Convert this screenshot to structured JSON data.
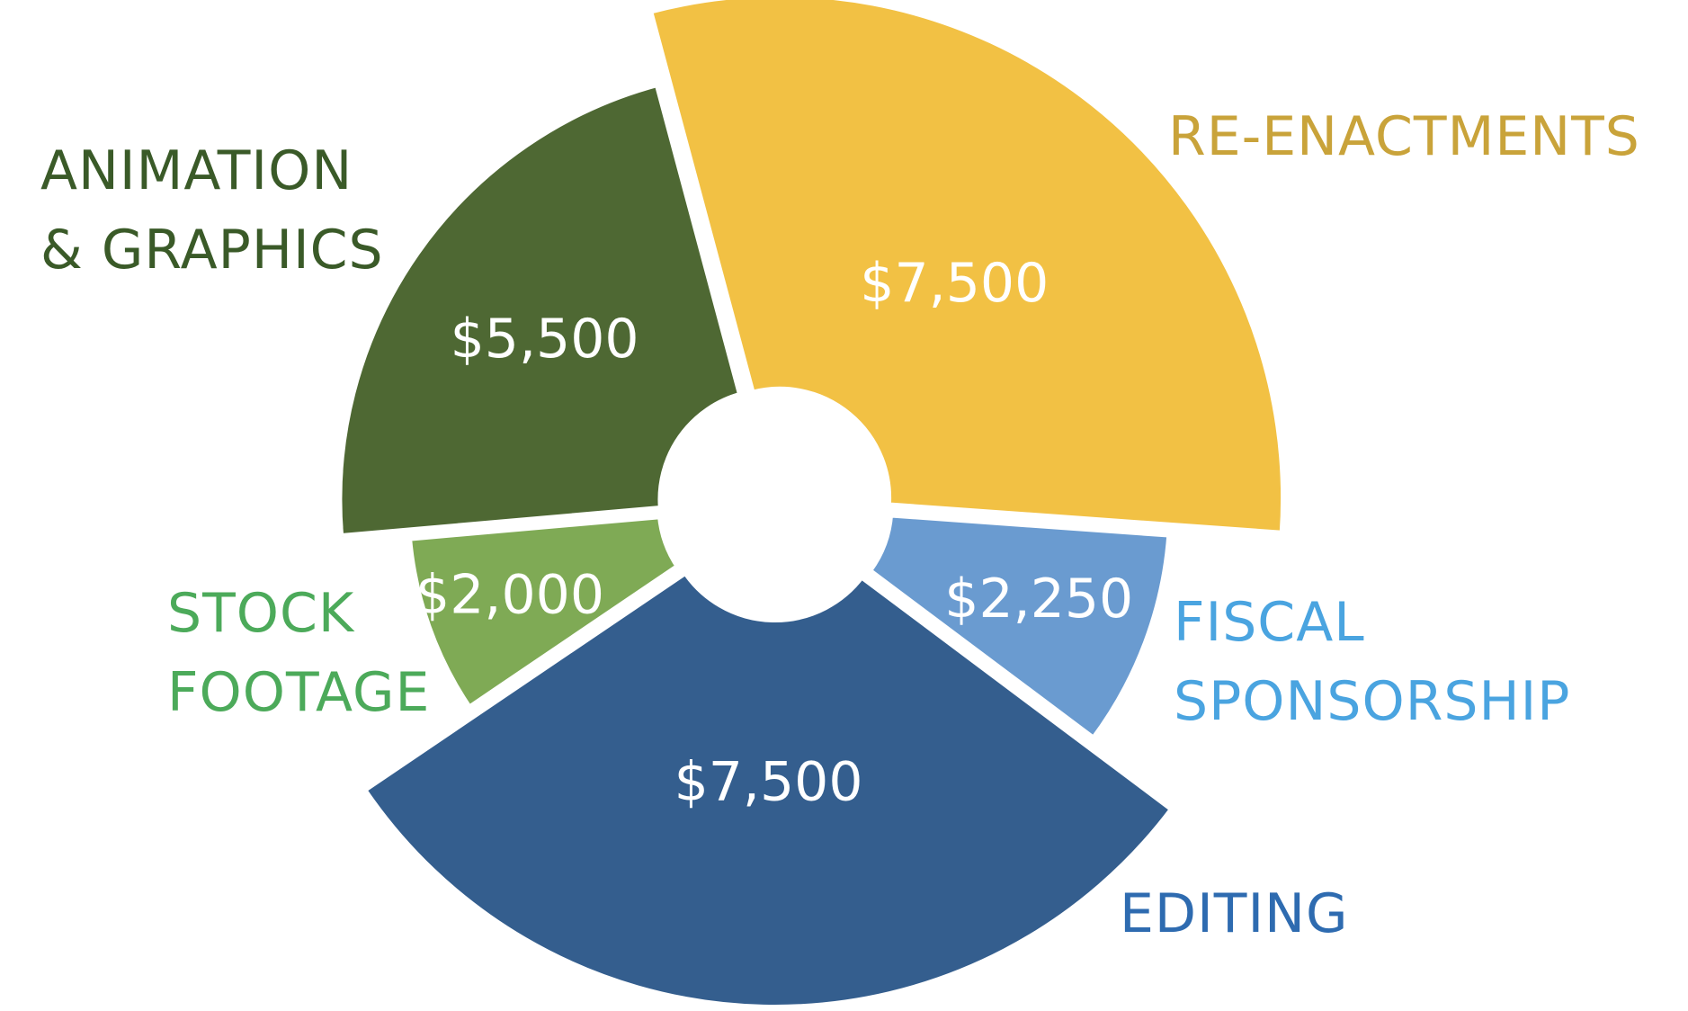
{
  "chart_data": {
    "type": "pie",
    "categories": [
      "RE-ENACTMENTS",
      "FISCAL\nSPONSORSHIP",
      "EDITING",
      "STOCK\nFOOTAGE",
      "ANIMATION\n& GRAPHICS"
    ],
    "values": [
      7500,
      2250,
      7500,
      2000,
      5500
    ],
    "value_labels": [
      "$7,500",
      "$2,250",
      "$7,500",
      "$2,000",
      "$5,500"
    ],
    "colors": [
      "#f2c144",
      "#6a9bd0",
      "#345e8e",
      "#7faa55",
      "#4e6833"
    ],
    "label_colors": [
      "#c9a33a",
      "#4aa4e0",
      "#2e6bb0",
      "#4caa5a",
      "#3a5a28"
    ]
  }
}
